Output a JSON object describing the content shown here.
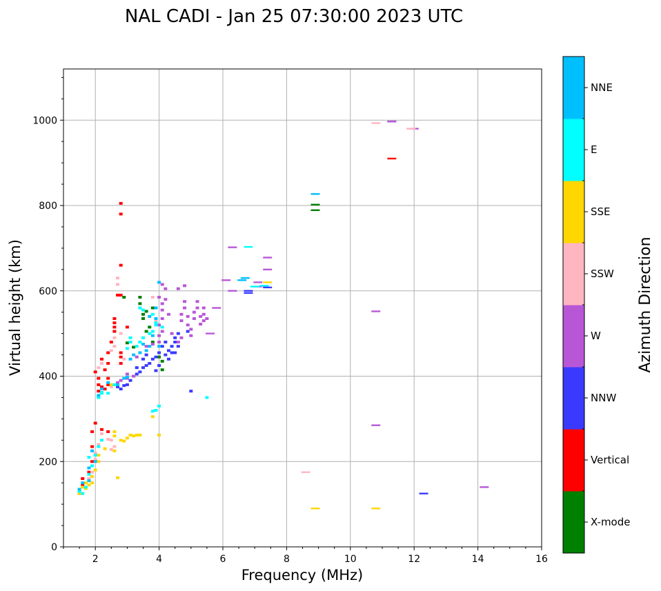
{
  "chart_data": {
    "type": "scatter",
    "title": "NAL CADI - Jan 25 07:30:00 2023 UTC",
    "xlabel": "Frequency (MHz)",
    "ylabel": "Virtual height (km)",
    "xlim": [
      1,
      16
    ],
    "ylim": [
      0,
      1120
    ],
    "xticks": [
      2,
      4,
      6,
      8,
      10,
      12,
      14,
      16
    ],
    "yticks": [
      0,
      200,
      400,
      600,
      800,
      1000
    ],
    "grid": true,
    "colorbar": {
      "title": "Azimuth Direction",
      "categories": [
        {
          "label": "X-mode",
          "color": "#008000"
        },
        {
          "label": "Vertical",
          "color": "#ff0000"
        },
        {
          "label": "NNW",
          "color": "#3a3aff"
        },
        {
          "label": "W",
          "color": "#b857d6"
        },
        {
          "label": "SSW",
          "color": "#ffb6c1"
        },
        {
          "label": "SSE",
          "color": "#ffd700"
        },
        {
          "label": "E",
          "color": "#00ffff"
        },
        {
          "label": "NNE",
          "color": "#00bfff"
        }
      ]
    },
    "series": [
      {
        "name": "X-mode",
        "points": [
          [
            3.4,
            585
          ],
          [
            3.4,
            570
          ],
          [
            3.5,
            545
          ],
          [
            3.5,
            535
          ],
          [
            3.7,
            515
          ],
          [
            3.6,
            505
          ],
          [
            3.8,
            480
          ],
          [
            4.1,
            435
          ],
          [
            4.1,
            415
          ],
          [
            8.9,
            802
          ],
          [
            8.9,
            789
          ],
          [
            4.0,
            445
          ],
          [
            3.0,
            478
          ],
          [
            3.2,
            468
          ],
          [
            3.6,
            552
          ],
          [
            3.8,
            560
          ],
          [
            2.9,
            585
          ]
        ]
      },
      {
        "name": "Vertical",
        "points": [
          [
            1.5,
            125
          ],
          [
            1.6,
            145
          ],
          [
            1.6,
            160
          ],
          [
            1.8,
            175
          ],
          [
            1.9,
            200
          ],
          [
            1.9,
            235
          ],
          [
            1.9,
            270
          ],
          [
            2.0,
            290
          ],
          [
            2.2,
            275
          ],
          [
            2.4,
            270
          ],
          [
            2.0,
            410
          ],
          [
            2.1,
            395
          ],
          [
            2.1,
            380
          ],
          [
            2.1,
            365
          ],
          [
            2.2,
            375
          ],
          [
            2.3,
            370
          ],
          [
            2.4,
            380
          ],
          [
            2.4,
            395
          ],
          [
            2.3,
            415
          ],
          [
            2.4,
            430
          ],
          [
            2.4,
            455
          ],
          [
            2.5,
            480
          ],
          [
            2.6,
            505
          ],
          [
            2.6,
            525
          ],
          [
            2.8,
            445
          ],
          [
            2.8,
            455
          ],
          [
            2.7,
            590
          ],
          [
            2.8,
            660
          ],
          [
            2.8,
            780
          ],
          [
            2.8,
            805
          ],
          [
            2.6,
            535
          ],
          [
            3.0,
            515
          ],
          [
            2.6,
            515
          ],
          [
            2.2,
            440
          ],
          [
            11.3,
            910
          ],
          [
            2.8,
            590
          ],
          [
            2.8,
            430
          ]
        ]
      },
      {
        "name": "NNW",
        "points": [
          [
            2.7,
            375
          ],
          [
            2.8,
            370
          ],
          [
            2.9,
            378
          ],
          [
            3.0,
            380
          ],
          [
            3.1,
            390
          ],
          [
            3.2,
            400
          ],
          [
            3.3,
            405
          ],
          [
            3.4,
            410
          ],
          [
            3.5,
            420
          ],
          [
            3.6,
            425
          ],
          [
            3.7,
            430
          ],
          [
            3.8,
            440
          ],
          [
            3.9,
            445
          ],
          [
            4.0,
            455
          ],
          [
            4.2,
            450
          ],
          [
            4.3,
            460
          ],
          [
            4.4,
            470
          ],
          [
            4.5,
            480
          ],
          [
            4.5,
            490
          ],
          [
            4.6,
            500
          ],
          [
            4.4,
            455
          ],
          [
            4.6,
            470
          ],
          [
            4.3,
            440
          ],
          [
            3.5,
            440
          ],
          [
            3.3,
            420
          ],
          [
            3.6,
            450
          ],
          [
            4.1,
            470
          ],
          [
            4.2,
            480
          ],
          [
            4.5,
            455
          ],
          [
            4.9,
            505
          ],
          [
            5.0,
            365
          ],
          [
            6.8,
            595
          ],
          [
            6.8,
            600
          ],
          [
            7.4,
            608
          ],
          [
            11.3,
            997
          ],
          [
            12.3,
            125
          ],
          [
            3.9,
            413
          ],
          [
            4.0,
            425
          ]
        ]
      },
      {
        "name": "W",
        "points": [
          [
            2.7,
            385
          ],
          [
            2.8,
            390
          ],
          [
            3.0,
            395
          ],
          [
            3.2,
            400
          ],
          [
            3.0,
            405
          ],
          [
            3.3,
            445
          ],
          [
            3.6,
            470
          ],
          [
            3.8,
            475
          ],
          [
            4.0,
            480
          ],
          [
            4.0,
            495
          ],
          [
            4.1,
            505
          ],
          [
            4.0,
            520
          ],
          [
            4.1,
            535
          ],
          [
            4.3,
            545
          ],
          [
            4.1,
            555
          ],
          [
            4.1,
            570
          ],
          [
            4.2,
            580
          ],
          [
            4.0,
            585
          ],
          [
            4.2,
            605
          ],
          [
            4.1,
            615
          ],
          [
            4.7,
            530
          ],
          [
            4.7,
            545
          ],
          [
            4.8,
            560
          ],
          [
            4.8,
            575
          ],
          [
            4.9,
            520
          ],
          [
            5.0,
            510
          ],
          [
            5.0,
            495
          ],
          [
            5.1,
            535
          ],
          [
            5.1,
            550
          ],
          [
            5.2,
            560
          ],
          [
            5.3,
            540
          ],
          [
            5.4,
            530
          ],
          [
            5.4,
            545
          ],
          [
            5.5,
            535
          ],
          [
            5.2,
            575
          ],
          [
            5.6,
            500
          ],
          [
            5.8,
            560
          ],
          [
            4.6,
            605
          ],
          [
            4.8,
            612
          ],
          [
            4.6,
            480
          ],
          [
            4.7,
            490
          ],
          [
            6.1,
            625
          ],
          [
            6.3,
            600
          ],
          [
            6.3,
            702
          ],
          [
            7.1,
            610
          ],
          [
            7.1,
            620
          ],
          [
            7.4,
            650
          ],
          [
            7.4,
            678
          ],
          [
            10.8,
            552
          ],
          [
            10.8,
            285
          ],
          [
            11.3,
            997
          ],
          [
            12.0,
            980
          ],
          [
            14.2,
            140
          ],
          [
            4.9,
            540
          ],
          [
            5.3,
            522
          ],
          [
            5.4,
            560
          ],
          [
            4.4,
            500
          ]
        ]
      },
      {
        "name": "SSW",
        "points": [
          [
            1.8,
            160
          ],
          [
            1.9,
            175
          ],
          [
            2.0,
            205
          ],
          [
            2.0,
            220
          ],
          [
            2.1,
            240
          ],
          [
            2.2,
            265
          ],
          [
            2.4,
            252
          ],
          [
            2.5,
            250
          ],
          [
            2.5,
            228
          ],
          [
            2.1,
            420
          ],
          [
            2.2,
            430
          ],
          [
            2.5,
            460
          ],
          [
            2.6,
            470
          ],
          [
            2.6,
            490
          ],
          [
            2.8,
            500
          ],
          [
            2.7,
            630
          ],
          [
            2.7,
            615
          ],
          [
            2.5,
            375
          ],
          [
            3.8,
            585
          ],
          [
            3.8,
            505
          ],
          [
            3.9,
            530
          ],
          [
            10.8,
            993
          ],
          [
            11.9,
            980
          ],
          [
            8.6,
            175
          ],
          [
            2.9,
            440
          ],
          [
            2.6,
            235
          ]
        ]
      },
      {
        "name": "SSE",
        "points": [
          [
            1.5,
            125
          ],
          [
            1.6,
            140
          ],
          [
            1.7,
            150
          ],
          [
            1.8,
            145
          ],
          [
            1.9,
            150
          ],
          [
            1.9,
            165
          ],
          [
            2.0,
            180
          ],
          [
            2.1,
            200
          ],
          [
            2.1,
            215
          ],
          [
            2.3,
            230
          ],
          [
            2.6,
            225
          ],
          [
            2.8,
            250
          ],
          [
            2.9,
            248
          ],
          [
            3.0,
            255
          ],
          [
            3.1,
            262
          ],
          [
            3.2,
            260
          ],
          [
            3.3,
            262
          ],
          [
            3.4,
            262
          ],
          [
            3.8,
            305
          ],
          [
            4.0,
            262
          ],
          [
            2.7,
            162
          ],
          [
            2.6,
            260
          ],
          [
            2.6,
            270
          ],
          [
            2.5,
            380
          ],
          [
            7.4,
            620
          ],
          [
            8.9,
            90
          ],
          [
            10.8,
            90
          ],
          [
            1.7,
            137
          ]
        ]
      },
      {
        "name": "E",
        "points": [
          [
            1.5,
            130
          ],
          [
            1.6,
            125
          ],
          [
            1.7,
            140
          ],
          [
            1.8,
            170
          ],
          [
            1.9,
            190
          ],
          [
            2.0,
            215
          ],
          [
            2.1,
            235
          ],
          [
            2.1,
            350
          ],
          [
            2.2,
            360
          ],
          [
            2.2,
            362
          ],
          [
            2.4,
            360
          ],
          [
            2.6,
            380
          ],
          [
            3.0,
            465
          ],
          [
            3.1,
            480
          ],
          [
            3.1,
            490
          ],
          [
            3.3,
            470
          ],
          [
            3.4,
            480
          ],
          [
            3.5,
            490
          ],
          [
            3.7,
            500
          ],
          [
            3.8,
            505
          ],
          [
            3.9,
            525
          ],
          [
            3.8,
            545
          ],
          [
            3.9,
            520
          ],
          [
            4.1,
            515
          ],
          [
            4.0,
            330
          ],
          [
            3.8,
            318
          ],
          [
            3.9,
            320
          ],
          [
            6.8,
            703
          ],
          [
            7.0,
            610
          ],
          [
            7.3,
            612
          ],
          [
            3.4,
            560
          ],
          [
            3.5,
            555
          ],
          [
            1.8,
            210
          ],
          [
            2.2,
            250
          ],
          [
            5.5,
            350
          ]
        ]
      },
      {
        "name": "NNE",
        "points": [
          [
            1.5,
            135
          ],
          [
            1.6,
            150
          ],
          [
            1.8,
            155
          ],
          [
            1.8,
            185
          ],
          [
            1.9,
            225
          ],
          [
            2.0,
            200
          ],
          [
            2.1,
            355
          ],
          [
            2.2,
            370
          ],
          [
            2.4,
            385
          ],
          [
            2.9,
            395
          ],
          [
            3.0,
            398
          ],
          [
            3.1,
            440
          ],
          [
            3.2,
            450
          ],
          [
            3.4,
            455
          ],
          [
            3.6,
            460
          ],
          [
            3.7,
            470
          ],
          [
            3.8,
            495
          ],
          [
            3.9,
            535
          ],
          [
            4.0,
            470
          ],
          [
            4.0,
            620
          ],
          [
            3.9,
            560
          ],
          [
            3.7,
            540
          ],
          [
            6.6,
            625
          ],
          [
            6.7,
            630
          ],
          [
            8.9,
            827
          ],
          [
            2.7,
            380
          ],
          [
            3.5,
            475
          ]
        ]
      }
    ]
  }
}
